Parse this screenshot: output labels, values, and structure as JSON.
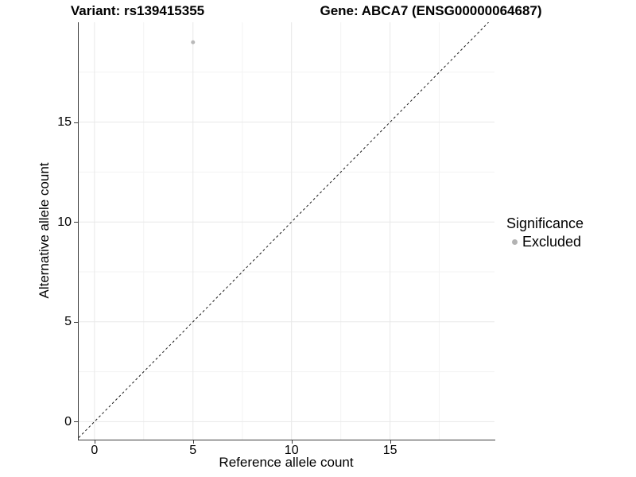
{
  "chart_data": {
    "type": "scatter",
    "titles": [
      "Variant: rs139415355",
      "Gene: ABCA7 (ENSG00000064687)"
    ],
    "xlabel": "Reference allele count",
    "ylabel": "Alternative allele count",
    "xlim": [
      -0.8,
      20.3
    ],
    "ylim": [
      -0.9,
      20.0
    ],
    "x_ticks": [
      0,
      5,
      10,
      15
    ],
    "y_ticks": [
      0,
      5,
      10,
      15
    ],
    "minor_ticks": [
      2.5,
      7.5,
      12.5,
      17.5
    ],
    "grid": true,
    "points": [
      {
        "x": 5,
        "y": 19,
        "series": "Excluded",
        "color": "#b9b9b9",
        "radius": 2.5
      }
    ],
    "reference_line": {
      "type": "identity",
      "style": "dashed",
      "color": "#1a1a1a"
    },
    "legend": {
      "position": "right",
      "title": "Significance",
      "items": [
        {
          "label": "Excluded",
          "marker": "circle",
          "color": "#b3b3b3"
        }
      ]
    },
    "colors": {
      "background": "#ffffff",
      "text": "#000000",
      "axis_line": "#3c3c3c",
      "grid_major": "#e8e8e8",
      "grid_minor": "#f3f3f3"
    }
  }
}
